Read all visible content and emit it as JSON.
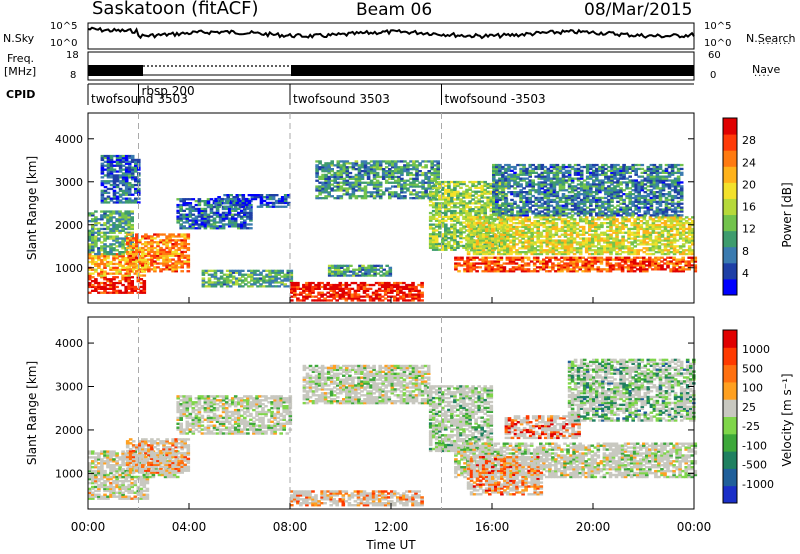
{
  "header": {
    "station": "Saskatoon (fitACF)",
    "beam": "Beam 06",
    "date": "08/Mar/2015"
  },
  "side_labels": {
    "nsky": "N.Sky",
    "nsearch": "N.Search",
    "freq_line1": "Freq.",
    "freq_line2": "[MHz]",
    "nave": "Nave",
    "cpid": "CPID"
  },
  "strip_ticks": {
    "noise_left": [
      "10^5",
      "10^0"
    ],
    "noise_right": [
      "10^5",
      "10^0"
    ],
    "freq_left": [
      "18",
      "8"
    ],
    "nave_right": [
      "60",
      "0"
    ]
  },
  "cpid_segments": [
    {
      "start_h": 0,
      "end_h": 2.0,
      "label": "twofsound 3503"
    },
    {
      "start_h": 2.0,
      "end_h": 8.0,
      "label": "rbsp 200"
    },
    {
      "start_h": 8.0,
      "end_h": 14.0,
      "label": "twofsound 3503"
    },
    {
      "start_h": 14.0,
      "end_h": 24.0,
      "label": "twofsound -3503"
    }
  ],
  "chart_data": [
    {
      "type": "heatmap",
      "panel": "power",
      "ylabel": "Slant Range [km]",
      "xlabel": "Time UT",
      "x_ticks": [
        "00:00",
        "04:00",
        "08:00",
        "12:00",
        "16:00",
        "20:00",
        "00:00"
      ],
      "xlim_hours": [
        0,
        24
      ],
      "ylim_km": [
        180,
        4600
      ],
      "y_ticks": [
        "1000",
        "2000",
        "3000",
        "4000"
      ],
      "colorbar_label": "Power [dB]",
      "colorbar_ticks": [
        "4",
        "8",
        "12",
        "16",
        "20",
        "24",
        "28"
      ],
      "colorbar_colors": [
        "#0000ff",
        "#1e3fa6",
        "#3a7bb0",
        "#3e9c6e",
        "#72c34c",
        "#b6d93a",
        "#f3e12a",
        "#ffb21a",
        "#ff7a10",
        "#ff3a08",
        "#e00000"
      ],
      "bands": [
        {
          "t0": 0.0,
          "t1": 2.2,
          "r0": 400,
          "r1": 800,
          "level": 0.95
        },
        {
          "t0": 0.0,
          "t1": 2.4,
          "r0": 800,
          "r1": 1300,
          "level": 0.7
        },
        {
          "t0": 0.0,
          "t1": 1.8,
          "r0": 1300,
          "r1": 2300,
          "level": 0.35
        },
        {
          "t0": 1.5,
          "t1": 4.0,
          "r0": 900,
          "r1": 1800,
          "level": 0.75
        },
        {
          "t0": 0.5,
          "t1": 2.0,
          "r0": 2500,
          "r1": 3600,
          "level": 0.2
        },
        {
          "t0": 3.5,
          "t1": 6.5,
          "r0": 1900,
          "r1": 2600,
          "level": 0.2
        },
        {
          "t0": 5.0,
          "t1": 8.0,
          "r0": 2400,
          "r1": 2700,
          "level": 0.15
        },
        {
          "t0": 4.5,
          "t1": 8.0,
          "r0": 550,
          "r1": 950,
          "level": 0.35
        },
        {
          "t0": 8.0,
          "t1": 13.2,
          "r0": 220,
          "r1": 650,
          "level": 0.95
        },
        {
          "t0": 9.0,
          "t1": 13.8,
          "r0": 2600,
          "r1": 3500,
          "level": 0.3
        },
        {
          "t0": 9.5,
          "t1": 12.0,
          "r0": 800,
          "r1": 1050,
          "level": 0.3
        },
        {
          "t0": 13.5,
          "t1": 16.5,
          "r0": 1400,
          "r1": 3000,
          "level": 0.45
        },
        {
          "t0": 14.5,
          "t1": 24.0,
          "r0": 900,
          "r1": 1250,
          "level": 0.85
        },
        {
          "t0": 15.0,
          "t1": 24.0,
          "r0": 1300,
          "r1": 2200,
          "level": 0.55
        },
        {
          "t0": 16.0,
          "t1": 23.5,
          "r0": 2200,
          "r1": 3400,
          "level": 0.25
        }
      ]
    },
    {
      "type": "heatmap",
      "panel": "velocity",
      "ylabel": "Slant Range [km]",
      "xlabel": "Time UT",
      "x_ticks": [
        "00:00",
        "04:00",
        "08:00",
        "12:00",
        "16:00",
        "20:00",
        "00:00"
      ],
      "xlim_hours": [
        0,
        24
      ],
      "ylim_km": [
        180,
        4600
      ],
      "y_ticks": [
        "1000",
        "2000",
        "3000",
        "4000"
      ],
      "colorbar_label": "Velocity [m s⁻¹]",
      "colorbar_ticks": [
        "1000",
        "500",
        "100",
        "25",
        "-25",
        "-100",
        "-500",
        "-1000"
      ],
      "colorbar_colors": [
        "#1a2fc8",
        "#1f5f9a",
        "#1f8060",
        "#3da83a",
        "#7fd64a",
        "#c8c8c0",
        "#ffa020",
        "#ff7010",
        "#ff3a00",
        "#e00000"
      ],
      "bands": [
        {
          "t0": 0.0,
          "t1": 2.4,
          "r0": 400,
          "r1": 900,
          "level": 0.55
        },
        {
          "t0": 0.0,
          "t1": 3.5,
          "r0": 900,
          "r1": 1500,
          "level": 0.5
        },
        {
          "t0": 1.5,
          "t1": 4.0,
          "r0": 1000,
          "r1": 1800,
          "level": 0.7
        },
        {
          "t0": 3.5,
          "t1": 8.0,
          "r0": 1900,
          "r1": 2800,
          "level": 0.5
        },
        {
          "t0": 8.5,
          "t1": 13.5,
          "r0": 2600,
          "r1": 3500,
          "level": 0.5
        },
        {
          "t0": 8.0,
          "t1": 13.2,
          "r0": 250,
          "r1": 600,
          "level": 0.72
        },
        {
          "t0": 13.5,
          "t1": 16.0,
          "r0": 1500,
          "r1": 3000,
          "level": 0.42
        },
        {
          "t0": 14.5,
          "t1": 24.0,
          "r0": 900,
          "r1": 1700,
          "level": 0.5
        },
        {
          "t0": 15.0,
          "t1": 18.0,
          "r0": 500,
          "r1": 1400,
          "level": 0.75
        },
        {
          "t0": 16.5,
          "t1": 19.5,
          "r0": 1800,
          "r1": 2300,
          "level": 0.85
        },
        {
          "t0": 19.0,
          "t1": 24.0,
          "r0": 2200,
          "r1": 3600,
          "level": 0.35
        }
      ]
    }
  ]
}
